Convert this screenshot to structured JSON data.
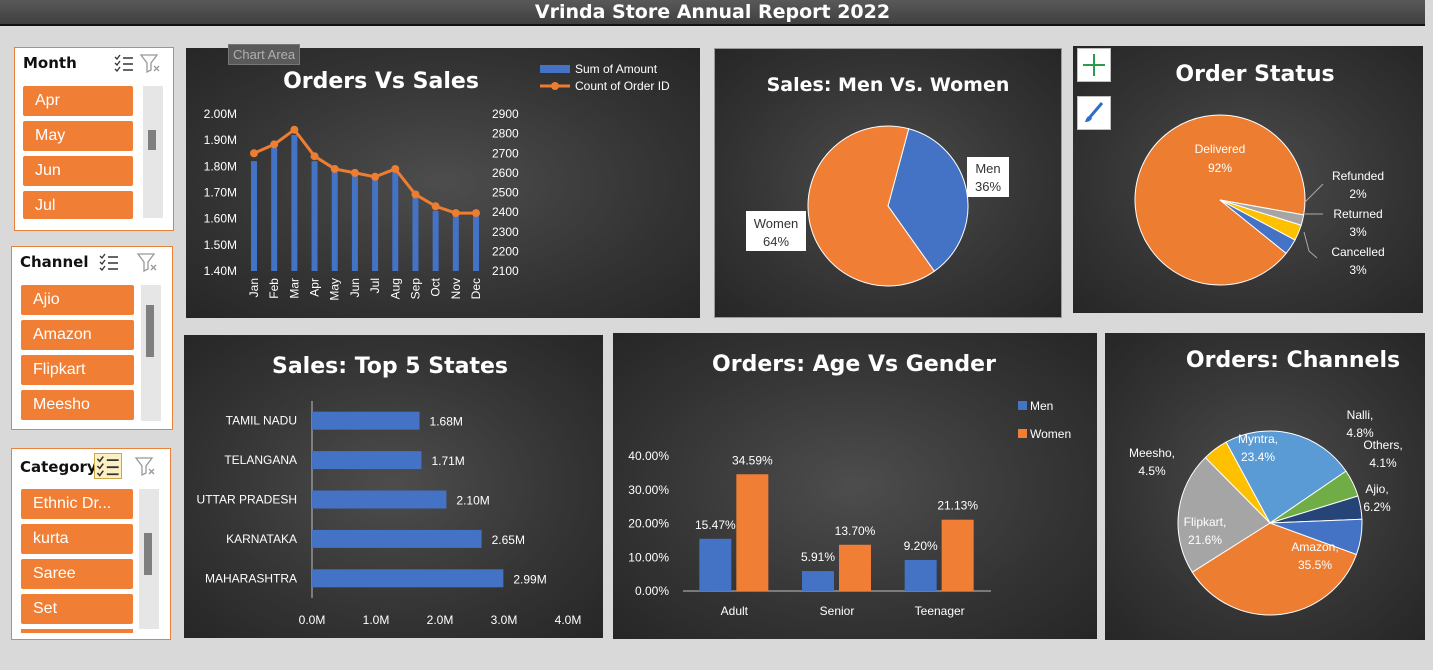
{
  "report_title": "Vrinda Store Annual Report 2022",
  "slicers": {
    "month": {
      "header": "Month",
      "items": [
        "Apr",
        "May",
        "Jun",
        "Jul"
      ]
    },
    "channel": {
      "header": "Channel",
      "items": [
        "Ajio",
        "Amazon",
        "Flipkart",
        "Meesho"
      ]
    },
    "category": {
      "header": "Category",
      "items": [
        "Ethnic Dr...",
        "kurta",
        "Saree",
        "Set"
      ]
    }
  },
  "chart_area_tooltip": "Chart Area",
  "icons": {
    "multi_select": "multi-select-icon",
    "clear_filter": "clear-filter-icon",
    "add": "plus-icon",
    "style": "brush-icon"
  },
  "colors": {
    "men": "#4472c4",
    "women": "#f07f35",
    "orange": "#ed7d31",
    "blue": "#4472c4",
    "gray": "#a5a5a5",
    "yellow": "#ffc000",
    "green": "#70ad47",
    "darkblue": "#264478",
    "lightblue": "#5b9bd5"
  },
  "chart_data": [
    {
      "id": "orders_vs_sales",
      "type": "bar",
      "title": "Orders Vs Sales",
      "categories": [
        "Jan",
        "Feb",
        "Mar",
        "Apr",
        "May",
        "Jun",
        "Jul",
        "Aug",
        "Sep",
        "Oct",
        "Nov",
        "Dec"
      ],
      "series": [
        {
          "name": "Sum of Amount",
          "type": "bar",
          "axis": "left",
          "values": [
            1.82,
            1.87,
            1.92,
            1.82,
            1.79,
            1.77,
            1.76,
            1.79,
            1.68,
            1.63,
            1.61,
            1.61
          ]
        },
        {
          "name": "Count of Order ID",
          "type": "line",
          "axis": "right",
          "values": [
            2700,
            2745,
            2820,
            2685,
            2620,
            2600,
            2580,
            2620,
            2490,
            2430,
            2395,
            2395
          ]
        }
      ],
      "left_axis": {
        "min": 1.4,
        "max": 2.0,
        "ticks": [
          "1.40M",
          "1.50M",
          "1.60M",
          "1.70M",
          "1.80M",
          "1.90M",
          "2.00M"
        ]
      },
      "right_axis": {
        "min": 2100,
        "max": 2900,
        "ticks": [
          "2100",
          "2200",
          "2300",
          "2400",
          "2500",
          "2600",
          "2700",
          "2800",
          "2900"
        ]
      },
      "legend": "top-right"
    },
    {
      "id": "sales_men_women",
      "type": "pie",
      "title": "Sales: Men Vs. Women",
      "slices": [
        {
          "label": "Men",
          "value": 36,
          "text": "36%"
        },
        {
          "label": "Women",
          "value": 64,
          "text": "64%"
        }
      ]
    },
    {
      "id": "order_status",
      "type": "pie",
      "title": "Order Status",
      "slices": [
        {
          "label": "Delivered",
          "value": 92,
          "text": "92%"
        },
        {
          "label": "Refunded",
          "value": 2,
          "text": "2%"
        },
        {
          "label": "Returned",
          "value": 3,
          "text": "3%"
        },
        {
          "label": "Cancelled",
          "value": 3,
          "text": "3%"
        }
      ]
    },
    {
      "id": "top_states",
      "type": "bar",
      "orientation": "horizontal",
      "title": "Sales: Top 5 States",
      "categories": [
        "TAMIL NADU",
        "TELANGANA",
        "UTTAR PRADESH",
        "KARNATAKA",
        "MAHARASHTRA"
      ],
      "values": [
        1.68,
        1.71,
        2.1,
        2.65,
        2.99
      ],
      "value_labels": [
        "1.68M",
        "1.71M",
        "2.10M",
        "2.65M",
        "2.99M"
      ],
      "xlim": [
        0,
        4
      ],
      "ticks": [
        "0.0M",
        "1.0M",
        "2.0M",
        "3.0M",
        "4.0M"
      ]
    },
    {
      "id": "age_vs_gender",
      "type": "bar",
      "title": "Orders: Age Vs Gender",
      "categories": [
        "Adult",
        "Senior",
        "Teenager"
      ],
      "series": [
        {
          "name": "Men",
          "values": [
            15.47,
            5.91,
            9.2
          ],
          "labels": [
            "15.47%",
            "5.91%",
            "9.20%"
          ]
        },
        {
          "name": "Women",
          "values": [
            34.59,
            13.7,
            21.13
          ],
          "labels": [
            "34.59%",
            "13.70%",
            "21.13%"
          ]
        }
      ],
      "ylim": [
        0,
        40
      ],
      "ticks": [
        "0.00%",
        "10.00%",
        "20.00%",
        "30.00%",
        "40.00%"
      ],
      "legend": "top-right"
    },
    {
      "id": "channels",
      "type": "pie",
      "title": "Orders: Channels",
      "slices": [
        {
          "label": "Amazon,",
          "value": 35.5,
          "text": "35.5%"
        },
        {
          "label": "Flipkart,",
          "value": 21.6,
          "text": "21.6%"
        },
        {
          "label": "Meesho,",
          "value": 4.5,
          "text": "4.5%"
        },
        {
          "label": "Myntra,",
          "value": 23.4,
          "text": "23.4%"
        },
        {
          "label": "Nalli,",
          "value": 4.8,
          "text": "4.8%"
        },
        {
          "label": "Others,",
          "value": 4.1,
          "text": "4.1%"
        },
        {
          "label": "Ajio,",
          "value": 6.2,
          "text": "6.2%"
        }
      ]
    }
  ]
}
